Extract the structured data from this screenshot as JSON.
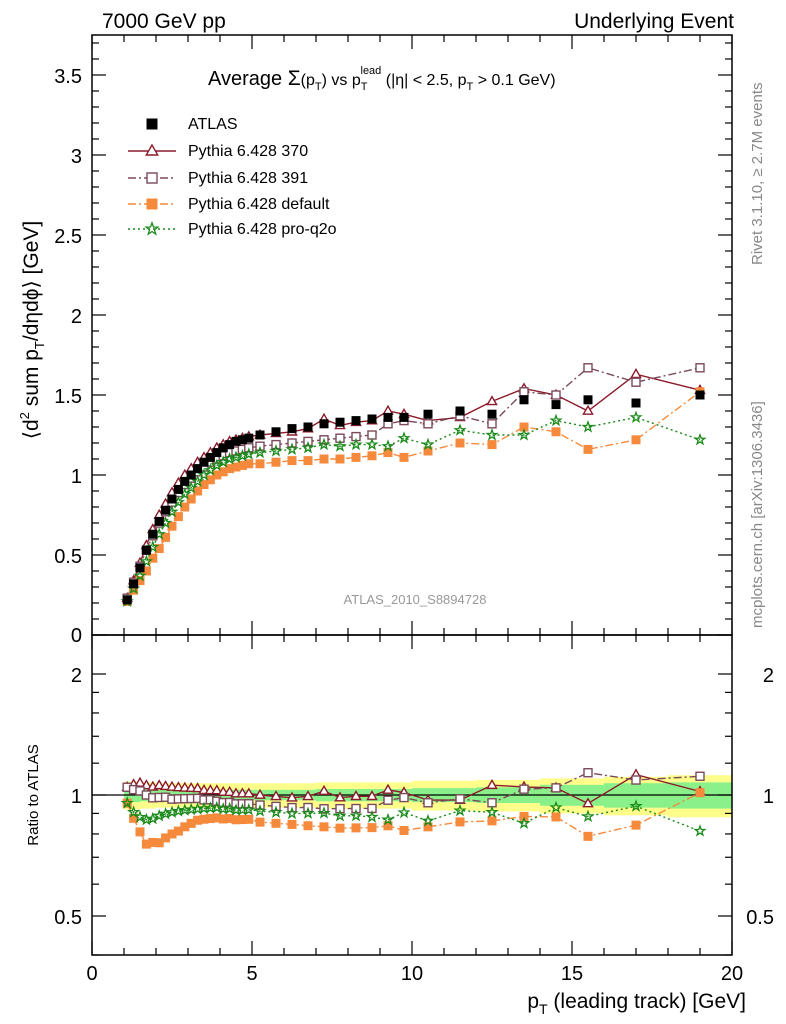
{
  "header": {
    "left": "7000 GeV pp",
    "right": "Underlying Event"
  },
  "side_labels": {
    "rivet": "Rivet 3.1.10, ≥ 2.7M events",
    "mcplots": "mcplots.cern.ch [arXiv:1306.3436]"
  },
  "watermark": "ATLAS_2010_S8894728",
  "title": {
    "prefix": "Average ",
    "sigma": "Σ",
    "paren_open": "(p",
    "paren_sub": "T",
    "paren_close": ")",
    "vs": " vs p",
    "vs_sub": "T",
    "vs_sup": "lead",
    "cut1": " (|η| < 2.5, p",
    "cut1_sub": "T",
    "cut2": " > 0.1 GeV)"
  },
  "ylabel_main": {
    "p1": "⟨d",
    "p1_sup": "2",
    "p2": " sum p",
    "p2_sub": "T",
    "p3": "/dηdϕ⟩ [GeV]"
  },
  "ylabel_ratio": "Ratio to ATLAS",
  "xlabel": {
    "p": "p",
    "sub": "T",
    "rest": " (leading track) [GeV]"
  },
  "chart_data": {
    "type": "scatter",
    "xlim": [
      0,
      20
    ],
    "ylim_main": [
      0,
      3.75
    ],
    "ylim_ratio": [
      0.35,
      2.3
    ],
    "x_ticks": [
      "0",
      "5",
      "10",
      "15",
      "20"
    ],
    "y_ticks_main": [
      "0",
      "0.5",
      "1",
      "1.5",
      "2",
      "2.5",
      "3",
      "3.5"
    ],
    "y_ticks_ratio": [
      "0.5",
      "1",
      "2"
    ],
    "legend_position": "top-left",
    "x": [
      1.1,
      1.3,
      1.5,
      1.7,
      1.9,
      2.1,
      2.3,
      2.5,
      2.7,
      2.9,
      3.1,
      3.3,
      3.5,
      3.7,
      3.9,
      4.1,
      4.3,
      4.5,
      4.7,
      4.9,
      5.25,
      5.75,
      6.25,
      6.75,
      7.25,
      7.75,
      8.25,
      8.75,
      9.25,
      9.75,
      10.5,
      11.5,
      12.5,
      13.5,
      14.5,
      15.5,
      17.0,
      19.0
    ],
    "atlas_band": {
      "x_edges": [
        1.0,
        1.5,
        2.0,
        3.0,
        4.0,
        5.0,
        7.0,
        10.0,
        12.0,
        14.0,
        16.0,
        18.0,
        20.0
      ],
      "stat": [
        0.04,
        0.035,
        0.03,
        0.03,
        0.03,
        0.03,
        0.035,
        0.04,
        0.045,
        0.06,
        0.07,
        0.075,
        0.075
      ],
      "total": [
        0.08,
        0.075,
        0.07,
        0.07,
        0.07,
        0.07,
        0.075,
        0.085,
        0.09,
        0.1,
        0.11,
        0.12,
        0.12
      ]
    },
    "series": [
      {
        "name": "ATLAS",
        "color": "#000000",
        "marker": "square-filled",
        "line": "none",
        "values": [
          0.22,
          0.32,
          0.42,
          0.53,
          0.63,
          0.71,
          0.78,
          0.85,
          0.91,
          0.96,
          1.0,
          1.04,
          1.08,
          1.11,
          1.14,
          1.17,
          1.19,
          1.21,
          1.22,
          1.23,
          1.25,
          1.27,
          1.29,
          1.3,
          1.32,
          1.33,
          1.34,
          1.35,
          1.36,
          1.36,
          1.38,
          1.4,
          1.38,
          1.47,
          1.44,
          1.47,
          1.45,
          1.5
        ]
      },
      {
        "name": "Pythia 6.428 370",
        "color": "#8b1a2b",
        "marker": "triangle-open",
        "line": "solid",
        "values": [
          0.23,
          0.34,
          0.45,
          0.56,
          0.66,
          0.75,
          0.82,
          0.89,
          0.95,
          1.0,
          1.04,
          1.08,
          1.11,
          1.14,
          1.17,
          1.19,
          1.21,
          1.22,
          1.23,
          1.24,
          1.25,
          1.26,
          1.27,
          1.29,
          1.35,
          1.31,
          1.33,
          1.34,
          1.4,
          1.38,
          1.34,
          1.36,
          1.46,
          1.54,
          1.5,
          1.4,
          1.63,
          1.53
        ]
      },
      {
        "name": "Pythia 6.428 391",
        "color": "#7a4a5a",
        "marker": "square-open",
        "line": "dashdot",
        "values": [
          0.23,
          0.33,
          0.43,
          0.53,
          0.62,
          0.7,
          0.77,
          0.83,
          0.89,
          0.94,
          0.98,
          1.02,
          1.05,
          1.08,
          1.1,
          1.12,
          1.14,
          1.15,
          1.16,
          1.17,
          1.18,
          1.19,
          1.2,
          1.21,
          1.22,
          1.23,
          1.24,
          1.25,
          1.32,
          1.34,
          1.32,
          1.37,
          1.32,
          1.52,
          1.5,
          1.67,
          1.58,
          1.67
        ]
      },
      {
        "name": "Pythia 6.428 default",
        "color": "#f68a3c",
        "marker": "square-filled",
        "line": "dashdot",
        "values": [
          0.21,
          0.28,
          0.34,
          0.4,
          0.48,
          0.54,
          0.61,
          0.68,
          0.74,
          0.8,
          0.85,
          0.9,
          0.94,
          0.97,
          1.0,
          1.02,
          1.04,
          1.05,
          1.06,
          1.07,
          1.07,
          1.08,
          1.09,
          1.09,
          1.1,
          1.1,
          1.11,
          1.12,
          1.14,
          1.11,
          1.15,
          1.2,
          1.19,
          1.3,
          1.27,
          1.16,
          1.22,
          1.52
        ]
      },
      {
        "name": "Pythia 6.428 pro-q2o",
        "color": "#1a8a1a",
        "marker": "star-open",
        "line": "dotted",
        "values": [
          0.21,
          0.29,
          0.37,
          0.46,
          0.55,
          0.63,
          0.7,
          0.77,
          0.83,
          0.88,
          0.92,
          0.96,
          1.0,
          1.03,
          1.06,
          1.08,
          1.1,
          1.11,
          1.12,
          1.13,
          1.14,
          1.15,
          1.16,
          1.17,
          1.19,
          1.18,
          1.19,
          1.19,
          1.18,
          1.23,
          1.19,
          1.28,
          1.25,
          1.25,
          1.34,
          1.3,
          1.36,
          1.22
        ]
      }
    ]
  }
}
